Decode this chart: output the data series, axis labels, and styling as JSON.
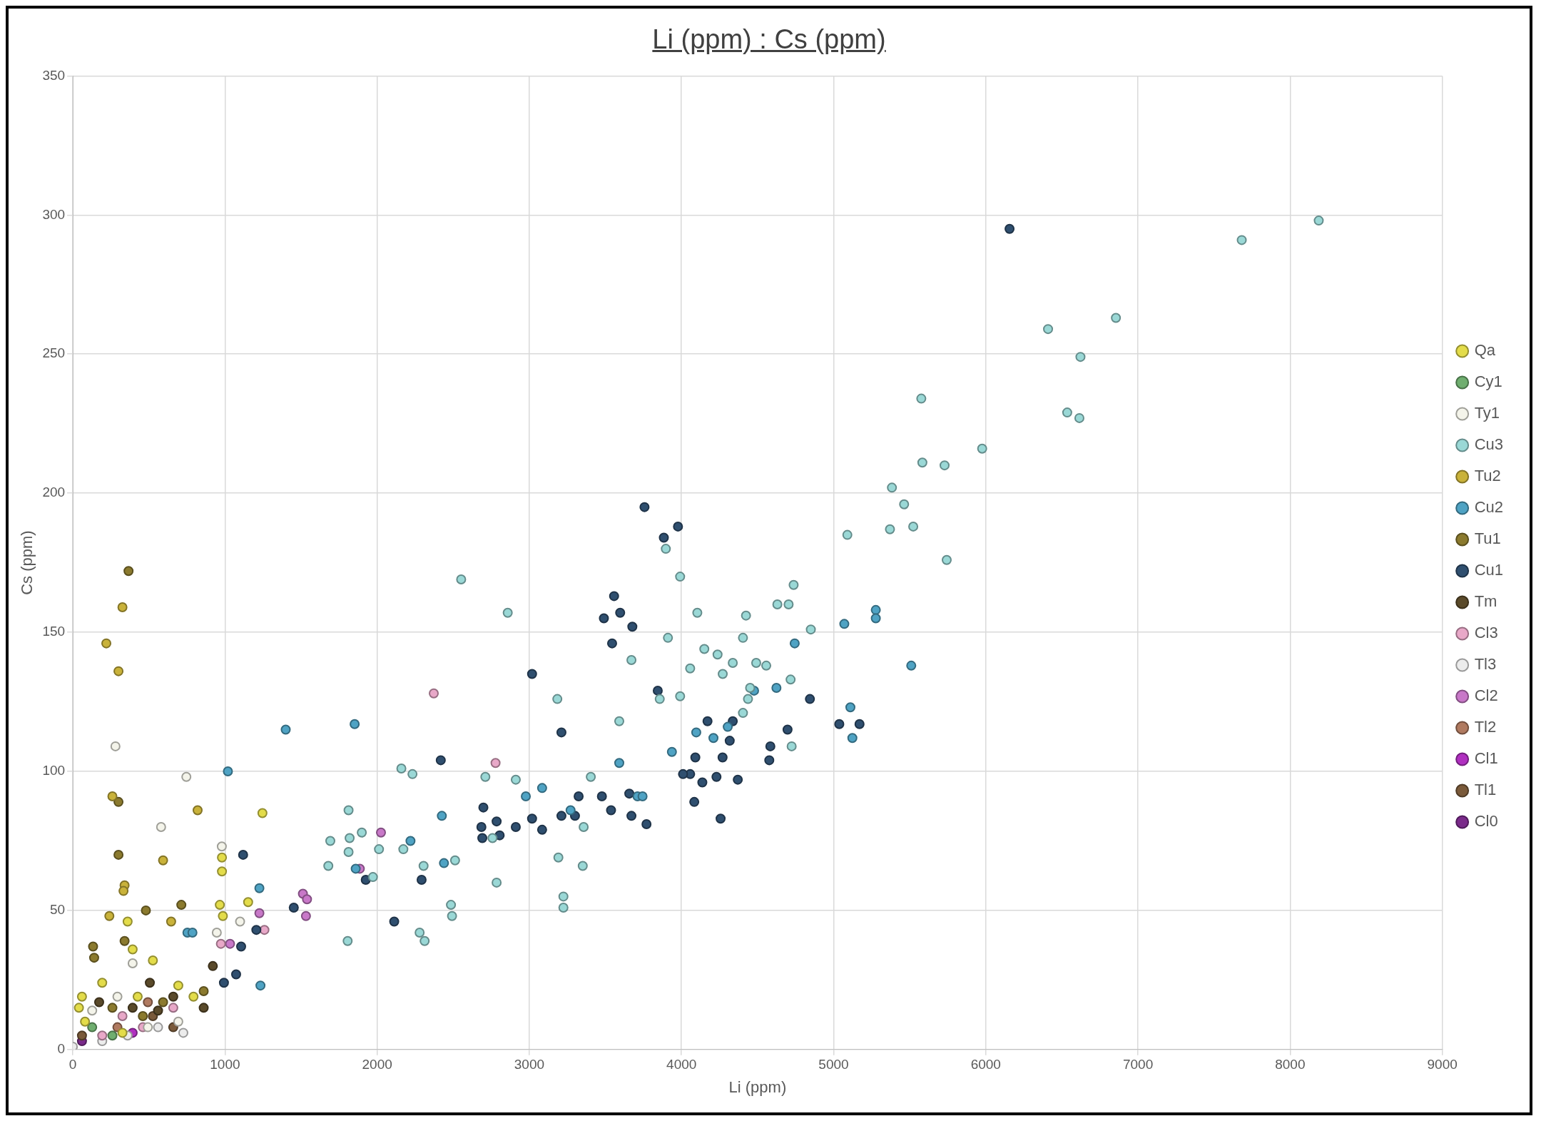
{
  "chart_data": {
    "type": "scatter",
    "title": "Li (ppm) : Cs (ppm)",
    "xlabel": "Li (ppm)",
    "ylabel": "Cs (ppm)",
    "xlim": [
      0,
      9000
    ],
    "xticks": [
      0,
      1000,
      2000,
      3000,
      4000,
      5000,
      6000,
      7000,
      8000,
      9000
    ],
    "ylim": [
      0,
      350
    ],
    "yticks": [
      0,
      50,
      100,
      150,
      200,
      250,
      300,
      350
    ],
    "grid": true,
    "legend": "right",
    "marker": "circle",
    "series": [
      {
        "name": "Qa",
        "color": "#e3dc4a",
        "x": [
          980,
          980,
          966,
          986,
          1152,
          1246,
          360,
          393,
          60,
          40,
          193,
          526,
          693,
          793,
          80,
          326,
          426
        ],
        "values": [
          69,
          64,
          52,
          48,
          53,
          85,
          46,
          36,
          19,
          15,
          24,
          32,
          23,
          19,
          10,
          6,
          19
        ]
      },
      {
        "name": "Cy1",
        "color": "#6fae6f",
        "x": [
          127,
          260
        ],
        "values": [
          8,
          5
        ]
      },
      {
        "name": "Ty1",
        "color": "#f4f4ea",
        "x": [
          280,
          580,
          746,
          979,
          1099,
          393,
          127,
          293,
          493,
          693,
          946
        ],
        "values": [
          109,
          80,
          98,
          73,
          46,
          31,
          14,
          19,
          8,
          10,
          42
        ]
      },
      {
        "name": "Cu3",
        "color": "#9ad8d6",
        "x": [
          8188,
          7682,
          6409,
          6855,
          6622,
          6535,
          6615,
          5576,
          5583,
          5729,
          5976,
          5383,
          5463,
          5370,
          5523,
          5743,
          5090,
          2552,
          2858,
          3897,
          3991,
          4104,
          2012,
          1972,
          1679,
          1812,
          1819,
          2172,
          2305,
          2512,
          2485,
          2492,
          2279,
          2312,
          1806,
          1812,
          1692,
          1899,
          2159,
          2232,
          2711,
          2911,
          3191,
          3224,
          3224,
          3351,
          3357,
          3184,
          2785,
          2758,
          3404,
          3591,
          3671,
          3911,
          3857,
          4057,
          4150,
          4237,
          4337,
          4404,
          4424,
          4630,
          4704,
          4737,
          4850,
          4557,
          4451,
          4404,
          4717,
          4724,
          4437,
          3991,
          4271,
          4491
        ],
        "values": [
          298,
          291,
          259,
          263,
          249,
          229,
          227,
          234,
          211,
          210,
          216,
          202,
          196,
          187,
          188,
          176,
          185,
          169,
          157,
          180,
          170,
          157,
          72,
          62,
          66,
          71,
          76,
          72,
          66,
          68,
          52,
          48,
          42,
          39,
          39,
          86,
          75,
          78,
          101,
          99,
          98,
          97,
          69,
          55,
          51,
          66,
          80,
          126,
          60,
          76,
          98,
          118,
          140,
          148,
          126,
          137,
          144,
          142,
          139,
          148,
          156,
          160,
          160,
          167,
          151,
          138,
          130,
          121,
          133,
          109,
          126,
          127,
          135,
          139
        ]
      },
      {
        "name": "Tu2",
        "color": "#c9b23a",
        "x": [
          220,
          300,
          326,
          260,
          820,
          593,
          340,
          333,
          240,
          646
        ],
        "values": [
          146,
          136,
          159,
          91,
          86,
          68,
          59,
          57,
          48,
          46
        ]
      },
      {
        "name": "Cu2",
        "color": "#4fa3c4",
        "x": [
          5510,
          5277,
          5277,
          5070,
          1019,
          1399,
          1852,
          2219,
          2439,
          2425,
          2977,
          3084,
          3271,
          3591,
          3711,
          3744,
          3937,
          4097,
          4210,
          4304,
          4477,
          4624,
          4744,
          5110,
          5123,
          1226,
          1233,
          753,
          786,
          1859
        ],
        "values": [
          138,
          158,
          155,
          153,
          100,
          115,
          117,
          75,
          67,
          84,
          91,
          94,
          86,
          103,
          91,
          91,
          107,
          114,
          112,
          116,
          129,
          130,
          146,
          123,
          112,
          58,
          23,
          42,
          42,
          65
        ]
      },
      {
        "name": "Tu1",
        "color": "#8b7a2e",
        "x": [
          366,
          300,
          300,
          480,
          340,
          713,
          133,
          140,
          593,
          860,
          460,
          260
        ],
        "values": [
          172,
          89,
          70,
          50,
          39,
          52,
          37,
          33,
          17,
          21,
          12,
          15
        ]
      },
      {
        "name": "Cu1",
        "color": "#2f4f6f",
        "x": [
          6156,
          3757,
          3884,
          3977,
          3557,
          3597,
          3490,
          3677,
          3544,
          3844,
          3018,
          3211,
          2418,
          4091,
          4137,
          4230,
          4057,
          4010,
          4270,
          4317,
          4171,
          4257,
          4370,
          4084,
          4337,
          4577,
          4697,
          4844,
          5037,
          5170,
          4584,
          3657,
          3477,
          3537,
          3671,
          3770,
          3300,
          3211,
          3084,
          3018,
          2911,
          2805,
          2785,
          2685,
          2691,
          2698,
          3324,
          2292,
          2112,
          1925,
          1452,
          1119,
          1206,
          1073,
          1106,
          993
        ],
        "values": [
          295,
          195,
          184,
          188,
          163,
          157,
          155,
          152,
          146,
          129,
          135,
          114,
          104,
          105,
          96,
          98,
          99,
          99,
          105,
          111,
          118,
          83,
          97,
          89,
          118,
          104,
          115,
          126,
          117,
          117,
          109,
          92,
          91,
          86,
          84,
          81,
          84,
          84,
          79,
          83,
          80,
          77,
          82,
          80,
          76,
          87,
          91,
          61,
          46,
          61,
          51,
          70,
          43,
          27,
          37,
          24
        ]
      },
      {
        "name": "Tm",
        "color": "#5a4a2a",
        "x": [
          173,
          393,
          660,
          560,
          860,
          920,
          506
        ],
        "values": [
          17,
          15,
          19,
          14,
          15,
          30,
          24
        ]
      },
      {
        "name": "Cl3",
        "color": "#e8a8c8",
        "x": [
          2372,
          2778,
          973,
          1259,
          193,
          326,
          460,
          660
        ],
        "values": [
          128,
          103,
          38,
          43,
          5,
          12,
          8,
          15
        ]
      },
      {
        "name": "Tl3",
        "color": "#ececec",
        "x": [
          0,
          193,
          360,
          560,
          726
        ],
        "values": [
          1,
          3,
          5,
          8,
          6
        ]
      },
      {
        "name": "Cl2",
        "color": "#c878c8",
        "x": [
          1512,
          1539,
          1532,
          2025,
          1886,
          1033,
          1226
        ],
        "values": [
          56,
          54,
          48,
          78,
          65,
          38,
          49
        ]
      },
      {
        "name": "Tl2",
        "color": "#b07a60",
        "x": [
          293,
          493
        ],
        "values": [
          8,
          17
        ]
      },
      {
        "name": "Cl1",
        "color": "#b030c0",
        "x": [
          393
        ],
        "values": [
          6
        ]
      },
      {
        "name": "Tl1",
        "color": "#7a5a3a",
        "x": [
          60,
          526,
          660
        ],
        "values": [
          5,
          12,
          8
        ]
      },
      {
        "name": "Cl0",
        "color": "#7a2a8a",
        "x": [
          60
        ],
        "values": [
          3
        ]
      }
    ]
  }
}
